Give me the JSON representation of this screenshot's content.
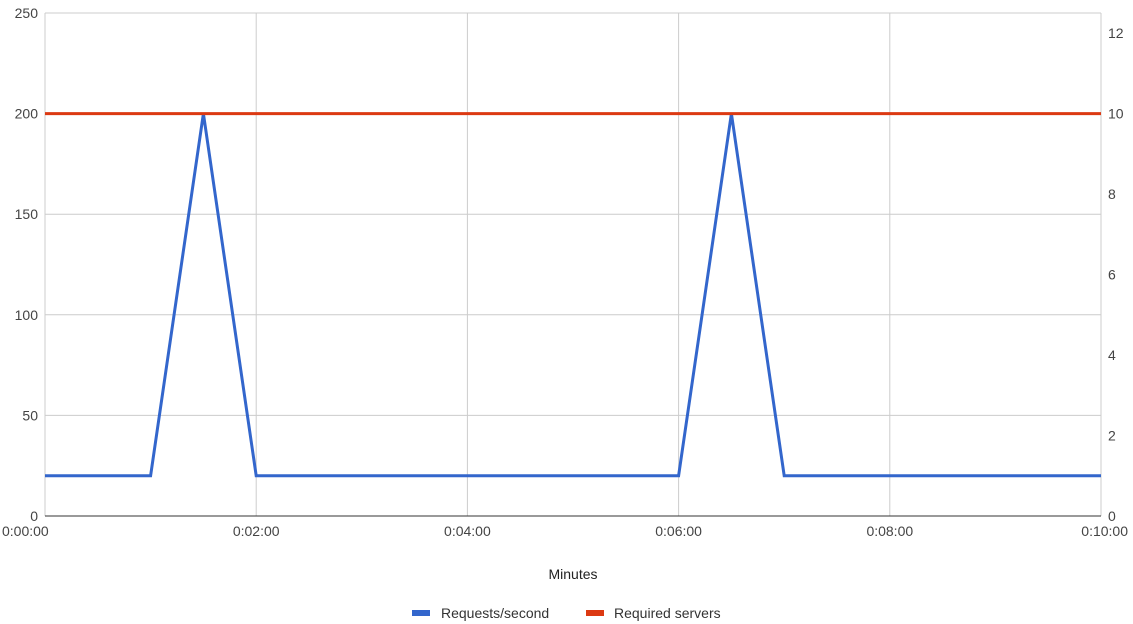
{
  "chart_data": {
    "type": "line",
    "x_ticks": [
      "0:00:00",
      "0:02:00",
      "0:04:00",
      "0:06:00",
      "0:08:00",
      "0:10:00"
    ],
    "xlabel": "Minutes",
    "x_range_seconds": [
      0,
      600
    ],
    "y_left": {
      "ticks": [
        "0",
        "50",
        "100",
        "150",
        "200",
        "250"
      ],
      "range": [
        0,
        250
      ]
    },
    "y_right": {
      "ticks": [
        "0",
        "2",
        "4",
        "6",
        "8",
        "10",
        "12"
      ],
      "range": [
        0,
        12.5
      ]
    },
    "grid": true,
    "legend_position": "bottom",
    "series": [
      {
        "name": "Requests/second",
        "axis": "left",
        "color": "#3366cc",
        "x": [
          "0:00:00",
          "0:01:00",
          "0:01:30",
          "0:02:00",
          "0:06:00",
          "0:06:30",
          "0:07:00",
          "0:10:00"
        ],
        "values": [
          20,
          20,
          200,
          20,
          20,
          200,
          20,
          20
        ]
      },
      {
        "name": "Required servers",
        "axis": "right",
        "color": "#dc3912",
        "x": [
          "0:00:00",
          "0:10:00"
        ],
        "values": [
          10,
          10
        ]
      }
    ]
  }
}
